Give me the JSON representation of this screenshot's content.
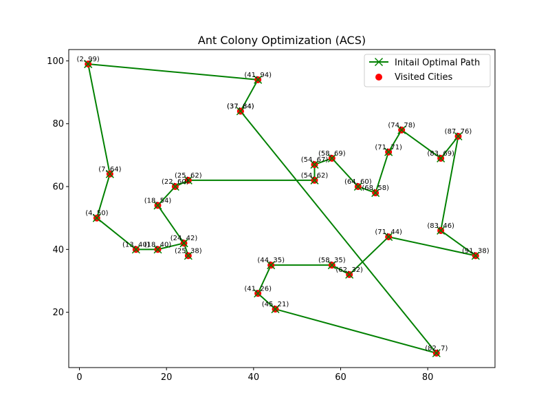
{
  "chart_data": {
    "type": "line",
    "title": "Ant Colony Optimization (ACS)",
    "xlabel": "",
    "ylabel": "",
    "xlim": [
      -2.45,
      95.45
    ],
    "ylim": [
      2.4,
      103.6
    ],
    "xticks": [
      0,
      20,
      40,
      60,
      80
    ],
    "yticks": [
      20,
      40,
      60,
      80,
      100
    ],
    "grid": false,
    "legend_position": "top-right",
    "colors": {
      "path": "#008000",
      "marker": "#ff0000"
    },
    "series": [
      {
        "name": "Initail Optimal Path",
        "style": "line-x-marker",
        "x": [
          2,
          41,
          37,
          82,
          45,
          41,
          44,
          58,
          62,
          71,
          91,
          83,
          87,
          83,
          74,
          71,
          68,
          64,
          58,
          54,
          54,
          25,
          22,
          18,
          24,
          25,
          24,
          18,
          13,
          4,
          7,
          2
        ],
        "y": [
          99,
          94,
          84,
          7,
          21,
          26,
          35,
          35,
          32,
          44,
          38,
          46,
          76,
          69,
          78,
          71,
          58,
          60,
          69,
          67,
          62,
          62,
          60,
          54,
          42,
          38,
          42,
          40,
          40,
          50,
          64,
          99
        ]
      },
      {
        "name": "Visited Cities",
        "style": "scatter",
        "x": [
          2,
          41,
          37,
          37,
          82,
          45,
          41,
          44,
          58,
          62,
          71,
          91,
          83,
          87,
          83,
          74,
          71,
          68,
          64,
          58,
          54,
          54,
          25,
          22,
          18,
          24,
          25,
          18,
          13,
          4,
          7
        ],
        "y": [
          99,
          94,
          84,
          84,
          7,
          21,
          26,
          35,
          35,
          32,
          44,
          38,
          46,
          76,
          69,
          78,
          71,
          58,
          60,
          69,
          67,
          62,
          62,
          60,
          54,
          42,
          38,
          40,
          40,
          50,
          64
        ]
      }
    ],
    "point_labels": [
      "(2, 99)",
      "(41, 94)",
      "(37, 84)",
      "(37, 84)",
      "(82, 7)",
      "(45, 21)",
      "(41, 26)",
      "(44, 35)",
      "(58, 35)",
      "(62, 32)",
      "(71, 44)",
      "(91, 38)",
      "(83, 46)",
      "(87, 76)",
      "(83, 69)",
      "(74, 78)",
      "(71, 71)",
      "(68, 58)",
      "(64, 60)",
      "(58, 69)",
      "(54, 67)",
      "(54, 62)",
      "(25, 62)",
      "(22, 60)",
      "(18, 54)",
      "(24, 42)",
      "(25, 38)",
      "(18, 40)",
      "(13, 40)",
      "(4, 50)",
      "(7, 64)"
    ]
  }
}
